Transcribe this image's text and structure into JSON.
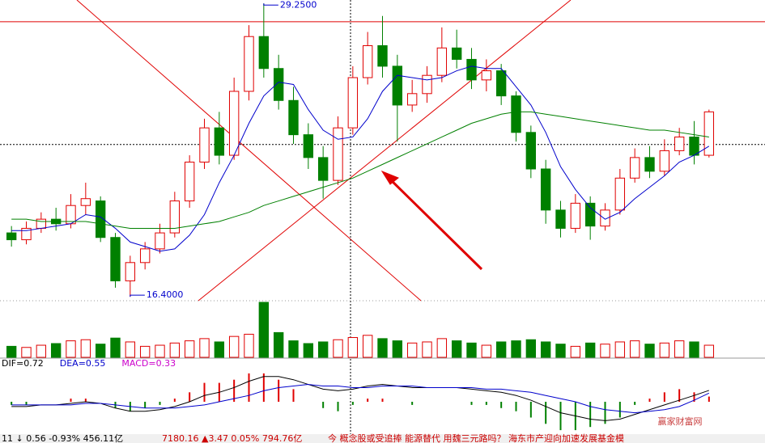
{
  "chart_data": {
    "type": "candlestick",
    "ylim": [
      16.3,
      29.4
    ],
    "open": [
      19.2,
      18.9,
      19.4,
      19.8,
      19.6,
      20.4,
      20.6,
      19.0,
      17.1,
      17.9,
      18.5,
      19.2,
      20.6,
      22.3,
      23.8,
      22.6,
      25.4,
      27.8,
      26.4,
      25.0,
      23.5,
      22.5,
      21.5,
      23.8,
      26.0,
      27.4,
      26.5,
      24.8,
      25.3,
      26.1,
      27.3,
      26.8,
      25.9,
      26.3,
      25.2,
      23.6,
      22.0,
      20.2,
      19.4,
      20.5,
      19.5,
      20.2,
      21.6,
      22.5,
      21.9,
      22.8,
      23.4,
      22.6
    ],
    "high": [
      19.5,
      19.7,
      20.1,
      20.3,
      20.9,
      21.4,
      20.8,
      19.2,
      18.2,
      18.8,
      19.6,
      21.0,
      22.6,
      24.2,
      24.5,
      26.0,
      28.3,
      29.25,
      27.0,
      25.6,
      24.0,
      23.0,
      24.3,
      26.5,
      28.0,
      28.7,
      27.0,
      25.9,
      26.5,
      28.2,
      28.1,
      27.3,
      26.8,
      26.6,
      25.4,
      23.9,
      22.4,
      20.6,
      20.9,
      20.8,
      20.5,
      22.0,
      22.9,
      23.0,
      23.3,
      23.8,
      24.1,
      24.6
    ],
    "low": [
      18.6,
      18.7,
      19.2,
      19.3,
      19.4,
      20.0,
      18.8,
      16.8,
      16.4,
      17.6,
      18.3,
      19.0,
      20.3,
      22.0,
      22.2,
      22.4,
      25.0,
      26.0,
      24.6,
      23.1,
      22.0,
      20.7,
      21.3,
      23.5,
      25.7,
      26.0,
      23.2,
      24.5,
      24.9,
      25.8,
      26.4,
      25.5,
      25.4,
      24.8,
      23.2,
      21.6,
      19.6,
      19.0,
      19.2,
      18.9,
      19.3,
      20.0,
      21.4,
      21.6,
      21.7,
      22.6,
      22.2,
      22.5
    ],
    "close": [
      18.9,
      19.4,
      19.8,
      19.6,
      20.4,
      20.7,
      19.0,
      17.1,
      17.9,
      18.5,
      19.2,
      20.6,
      22.3,
      23.8,
      22.6,
      25.4,
      27.8,
      26.4,
      25.0,
      23.5,
      22.5,
      21.5,
      23.8,
      26.0,
      27.4,
      26.5,
      24.8,
      25.3,
      26.1,
      27.3,
      26.8,
      25.9,
      26.3,
      25.2,
      23.6,
      22.0,
      20.2,
      19.4,
      20.5,
      19.5,
      20.2,
      21.6,
      22.5,
      21.9,
      22.8,
      23.4,
      22.6,
      24.5
    ],
    "series": [
      {
        "color": "#0000cc",
        "values": [
          19.3,
          19.3,
          19.4,
          19.5,
          19.6,
          20.0,
          19.9,
          19.4,
          18.8,
          18.6,
          18.4,
          18.5,
          19.1,
          20.0,
          21.4,
          22.6,
          24.0,
          25.2,
          25.8,
          25.7,
          24.6,
          23.7,
          23.3,
          23.4,
          24.2,
          25.4,
          26.1,
          26.0,
          25.9,
          26.0,
          26.3,
          26.5,
          26.4,
          26.4,
          25.6,
          24.8,
          23.6,
          22.1,
          21.1,
          20.3,
          19.8,
          20.1,
          20.7,
          21.2,
          21.7,
          22.3,
          22.6,
          23.0
        ]
      },
      {
        "color": "#008000",
        "values": [
          19.8,
          19.8,
          19.7,
          19.7,
          19.7,
          19.7,
          19.6,
          19.5,
          19.4,
          19.4,
          19.4,
          19.4,
          19.5,
          19.6,
          19.7,
          19.9,
          20.1,
          20.4,
          20.6,
          20.8,
          21.0,
          21.2,
          21.4,
          21.6,
          21.9,
          22.2,
          22.5,
          22.8,
          23.1,
          23.4,
          23.7,
          24.0,
          24.2,
          24.4,
          24.5,
          24.5,
          24.4,
          24.3,
          24.2,
          24.1,
          24.0,
          23.9,
          23.8,
          23.7,
          23.7,
          23.6,
          23.5,
          23.4
        ]
      }
    ],
    "reference_line": 28.45,
    "crosshair_y": 23.07,
    "annotations": [
      {
        "value": 29.25,
        "label": "29.2500"
      },
      {
        "value": 16.4,
        "label": "16.4000"
      }
    ],
    "volume": {
      "ylim": [
        0,
        100
      ],
      "values": [
        20,
        18,
        22,
        25,
        30,
        32,
        24,
        35,
        28,
        20,
        22,
        26,
        30,
        34,
        28,
        38,
        42,
        100,
        45,
        30,
        25,
        28,
        32,
        36,
        40,
        34,
        30,
        26,
        28,
        34,
        30,
        26,
        22,
        28,
        30,
        32,
        28,
        24,
        20,
        26,
        24,
        28,
        30,
        24,
        26,
        30,
        28,
        22
      ]
    },
    "macd": {
      "ylim": [
        -2,
        2
      ],
      "labels": [
        {
          "label": "DIF=0.72",
          "color": "#000000"
        },
        {
          "label": "DEA=0.55",
          "color": "#0000cc"
        },
        {
          "label": "MACD=0.33",
          "color": "#cc00cc"
        }
      ],
      "dif": [
        -0.3,
        -0.3,
        -0.2,
        -0.2,
        -0.1,
        0,
        -0.1,
        -0.4,
        -0.6,
        -0.6,
        -0.5,
        -0.3,
        0,
        0.4,
        0.6,
        0.9,
        1.3,
        1.6,
        1.6,
        1.4,
        1.1,
        0.8,
        0.7,
        0.8,
        1.0,
        1.1,
        1.0,
        0.9,
        0.9,
        0.9,
        0.9,
        0.8,
        0.7,
        0.6,
        0.4,
        0.1,
        -0.3,
        -0.7,
        -0.9,
        -1.1,
        -1.2,
        -1.1,
        -0.8,
        -0.5,
        -0.2,
        0.1,
        0.4,
        0.72
      ],
      "dea": [
        -0.2,
        -0.2,
        -0.2,
        -0.2,
        -0.2,
        -0.1,
        -0.1,
        -0.2,
        -0.3,
        -0.4,
        -0.4,
        -0.4,
        -0.3,
        -0.2,
        0,
        0.2,
        0.4,
        0.7,
        0.9,
        1.0,
        1.1,
        1.0,
        1.0,
        0.9,
        0.9,
        1.0,
        1.0,
        1.0,
        0.9,
        0.9,
        0.9,
        0.9,
        0.8,
        0.8,
        0.7,
        0.6,
        0.4,
        0.2,
        0,
        -0.3,
        -0.5,
        -0.6,
        -0.7,
        -0.6,
        -0.5,
        -0.3,
        0.1,
        0.55
      ],
      "hist": [
        -0.2,
        -0.2,
        0,
        0,
        0.2,
        0.2,
        0,
        -0.4,
        -0.6,
        -0.4,
        -0.2,
        0.2,
        0.6,
        1.2,
        1.2,
        1.4,
        1.8,
        1.8,
        1.4,
        0.8,
        0,
        -0.4,
        -0.6,
        -0.2,
        0.2,
        0.2,
        0,
        -0.2,
        0,
        0,
        0,
        -0.2,
        -0.2,
        -0.4,
        -0.6,
        -1.0,
        -1.4,
        -1.8,
        -1.8,
        -1.6,
        -1.4,
        -1.0,
        -0.2,
        0.2,
        0.6,
        0.8,
        0.6,
        0.33
      ]
    }
  },
  "status_bar": {
    "left": "11 ↓ 0.56 -0.93% 456.11亿",
    "index": "7180.16 ▲3.47 0.05% 794.76亿",
    "news": "今 概念股或受追捧  能源替代  用魏三元路吗？  海东市产迎向加速发展基金模"
  },
  "watermark": "赢家财富网"
}
